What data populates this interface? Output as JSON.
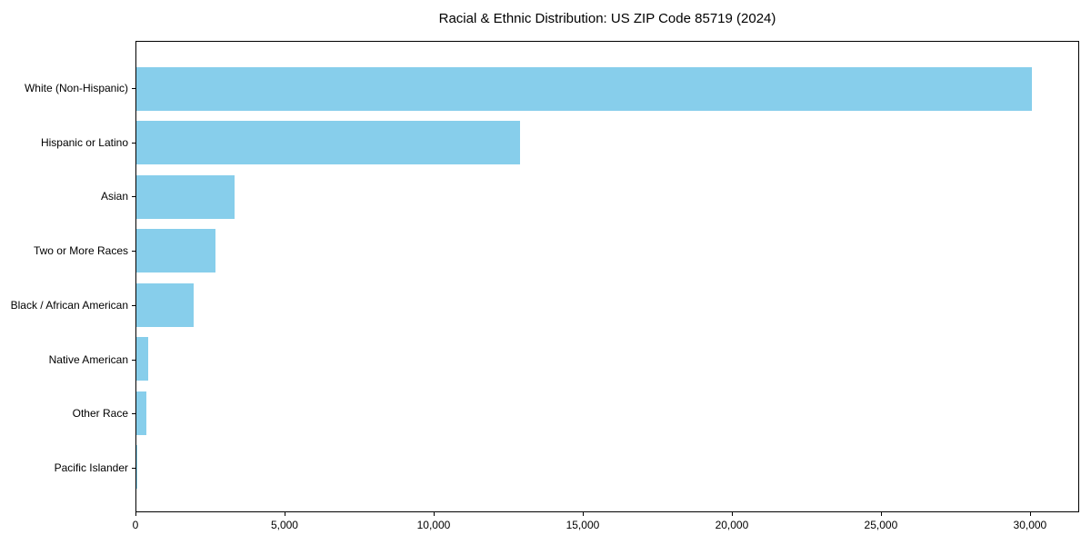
{
  "chart_data": {
    "type": "bar",
    "orientation": "horizontal",
    "title": "Racial & Ethnic Distribution: US ZIP Code 85719 (2024)",
    "xlabel": "",
    "ylabel": "",
    "categories": [
      "White (Non-Hispanic)",
      "Hispanic or Latino",
      "Asian",
      "Two or More Races",
      "Black / African American",
      "Native American",
      "Other Race",
      "Pacific Islander"
    ],
    "values": [
      30100,
      12900,
      3300,
      2650,
      1920,
      400,
      340,
      40
    ],
    "xlim": [
      0,
      31650
    ],
    "xticks": [
      0,
      5000,
      10000,
      15000,
      20000,
      25000,
      30000
    ],
    "xtick_labels": [
      "0",
      "5,000",
      "10,000",
      "15,000",
      "20,000",
      "25,000",
      "30,000"
    ],
    "bar_color": "#87CEEB",
    "grid": false,
    "legend": null
  }
}
